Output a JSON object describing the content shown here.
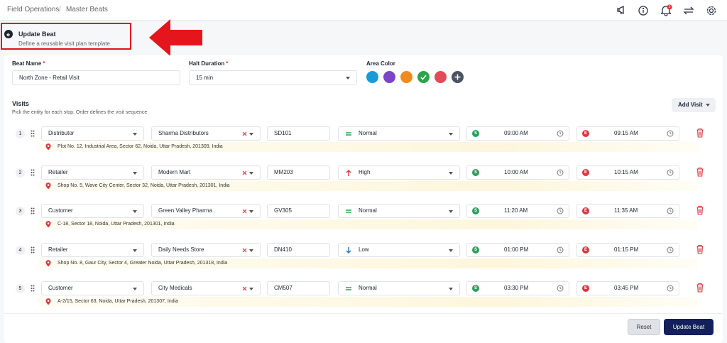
{
  "breadcrumb": [
    "Field Operations",
    "Master Beats"
  ],
  "notification_count": "3",
  "header": {
    "title": "Update Beat",
    "subtitle": "Define a reusable visit plan template."
  },
  "form": {
    "required_mark": "*",
    "beat_name_label": "Beat Name",
    "beat_name": "North Zone - Retail Visit",
    "halt_label": "Halt Duration",
    "halt": "15 min",
    "color_label": "Area Color",
    "colors": [
      "#1a9ad6",
      "#7a45c6",
      "#f18a1c",
      "#2ba44a",
      "#e24b57"
    ],
    "selected_color": 3
  },
  "visits": {
    "title": "Visits",
    "subtitle": "Pick the entity for each stop. Order defines the visit sequence",
    "add_button": "Add Visit",
    "start_badge": "S",
    "end_badge": "E",
    "rows": [
      {
        "index": "1",
        "type": "Distributor",
        "entity": "Sharma Distributors",
        "code": "SD101",
        "priority": "Normal",
        "start": "09:00 AM",
        "end": "09:15 AM",
        "address": "Plot No. 12, Industrial Area, Sector 62, Noida, Uttar Pradesh, 201309, India"
      },
      {
        "index": "2",
        "type": "Retailer",
        "entity": "Modern Mart",
        "code": "MM203",
        "priority": "High",
        "start": "10:00 AM",
        "end": "10:15 AM",
        "address": "Shop No. 5, Wave City Center, Sector 32, Noida, Uttar Pradesh, 201301, India"
      },
      {
        "index": "3",
        "type": "Customer",
        "entity": "Green Valley Pharma",
        "code": "GV305",
        "priority": "Normal",
        "start": "11:20 AM",
        "end": "11:35 AM",
        "address": "C-18, Sector 18, Noida, Uttar Pradesh, 201301, India"
      },
      {
        "index": "4",
        "type": "Retailer",
        "entity": "Daily Needs Store",
        "code": "DN410",
        "priority": "Low",
        "start": "01:00 PM",
        "end": "01:15 PM",
        "address": "Shop No. 8, Gaur City, Sector 4, Greater Noida, Uttar Pradesh, 201318, India"
      },
      {
        "index": "5",
        "type": "Customer",
        "entity": "City Medicals",
        "code": "CM507",
        "priority": "Normal",
        "start": "03:30 PM",
        "end": "03:45 PM",
        "address": "A-2/15, Sector 63, Noida, Uttar Pradesh, 201307, India"
      }
    ]
  },
  "buttons": {
    "reset": "Reset",
    "update": "Update Beat"
  }
}
